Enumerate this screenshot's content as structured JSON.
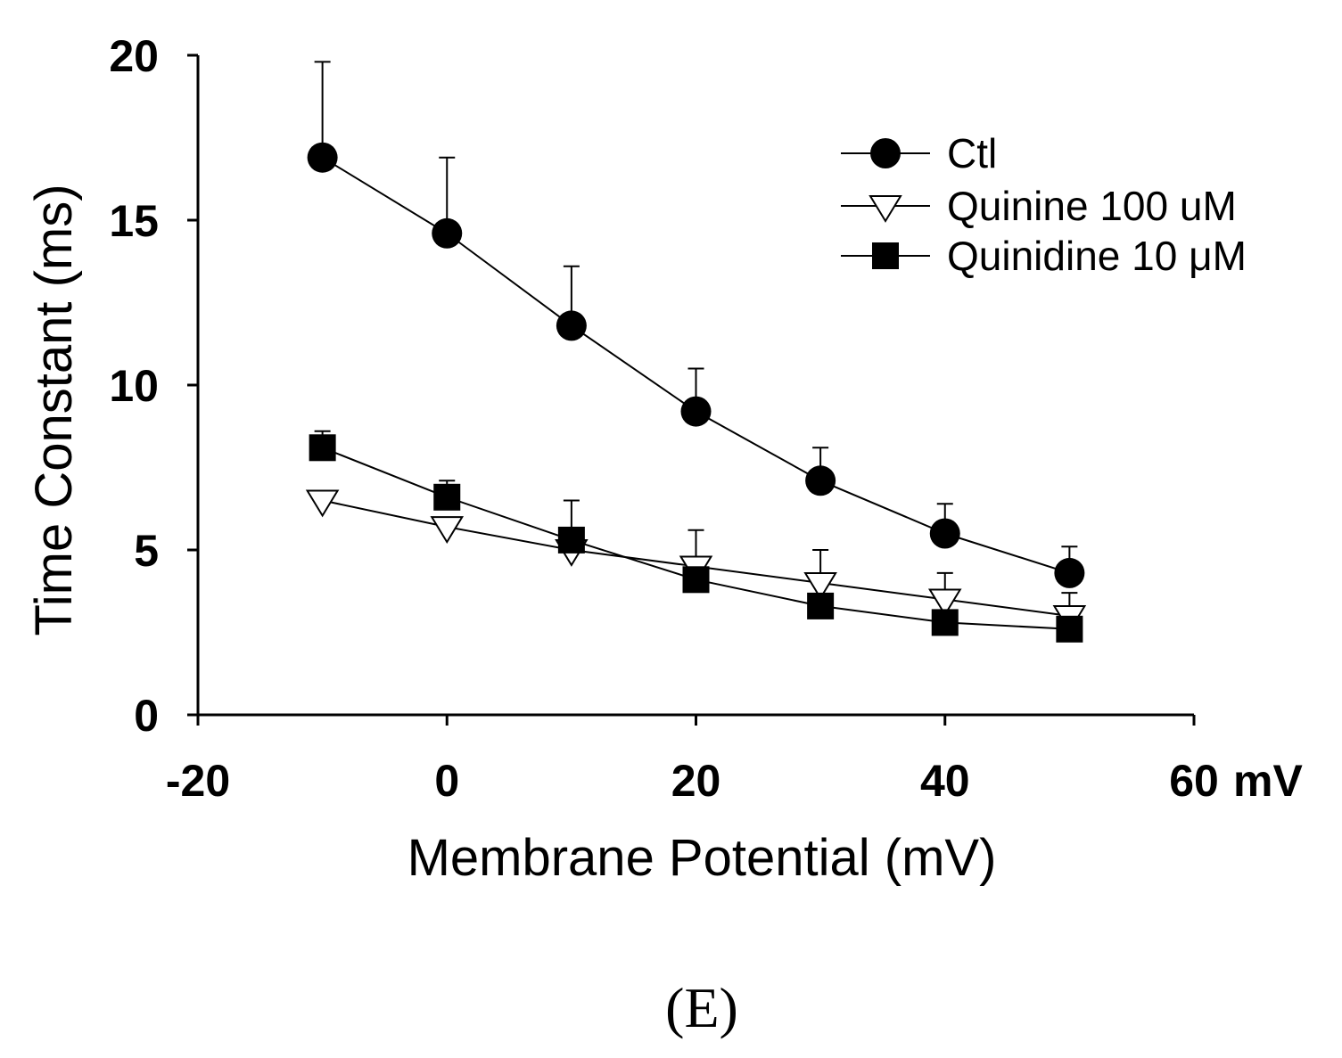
{
  "chart_data": {
    "type": "line",
    "title": "",
    "xlabel": "Membrane Potential (mV)",
    "ylabel": "Time Constant (ms)",
    "x_unit_label": "mV",
    "panel_label": "(E)",
    "xlim": [
      -20,
      60
    ],
    "ylim": [
      0,
      20
    ],
    "x_ticks": [
      -20,
      0,
      20,
      40,
      60
    ],
    "y_ticks": [
      0,
      5,
      10,
      15,
      20
    ],
    "x": [
      -10,
      0,
      10,
      20,
      30,
      40,
      50
    ],
    "legend_position": "top-right",
    "series": [
      {
        "name": "Ctl",
        "marker": "filled-circle",
        "values": [
          16.9,
          14.6,
          11.8,
          9.2,
          7.1,
          5.5,
          4.3
        ],
        "error_upper": [
          19.8,
          16.9,
          13.6,
          10.5,
          8.1,
          6.4,
          5.1
        ]
      },
      {
        "name": "Quinine 100 uM",
        "marker": "open-triangle-down",
        "values": [
          6.5,
          5.7,
          5.0,
          4.5,
          4.0,
          3.5,
          3.0
        ],
        "error_upper": [
          null,
          null,
          null,
          5.6,
          5.0,
          4.3,
          3.7
        ]
      },
      {
        "name": "Quinidine 10 μM",
        "marker": "filled-square",
        "values": [
          8.1,
          6.6,
          5.3,
          4.1,
          3.3,
          2.8,
          2.6
        ],
        "error_upper": [
          8.6,
          7.1,
          6.5,
          null,
          null,
          null,
          null
        ]
      }
    ]
  }
}
